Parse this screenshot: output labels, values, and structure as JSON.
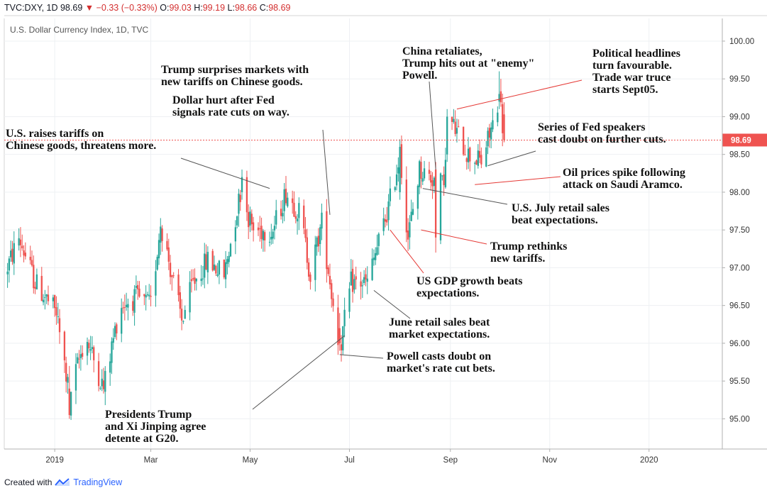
{
  "header": {
    "symbol": "TVC:DXY, 1D",
    "last": "98.69",
    "change": "−0.33 (−0.33%)",
    "o_label": "O:",
    "o_value": "99.03",
    "h_label": "H:",
    "h_value": "99.19",
    "l_label": "L:",
    "l_value": "98.66",
    "c_label": "C:",
    "c_value": "98.69",
    "down_arrow_icon": "triangle-down"
  },
  "footer": {
    "text": "Created with",
    "brand": "TradingView",
    "logo_icon": "tradingview-logo"
  },
  "colors": {
    "up": "#26a69a",
    "down": "#ef5350",
    "price_badge": "#ef5350",
    "annotation_line_gray": "#555555",
    "annotation_line_red": "#e53935"
  },
  "chart_data": {
    "type": "candlestick",
    "title": "U.S. Dollar Currency Index, 1D, TVC",
    "last_price_label": "98.69",
    "ylim": [
      94.6,
      100.3
    ],
    "y_ticks": [
      "100.00",
      "99.50",
      "99.00",
      "98.50",
      "98.00",
      "97.50",
      "97.00",
      "96.50",
      "96.00",
      "95.50",
      "95.00"
    ],
    "y_tick_values": [
      100.0,
      99.5,
      99.0,
      98.5,
      98.0,
      97.5,
      97.0,
      96.5,
      96.0,
      95.5,
      95.0
    ],
    "x_ticks": [
      "2019",
      "Mar",
      "May",
      "Jul",
      "Sep",
      "Nov",
      "2020"
    ],
    "x_tick_dates": [
      "2019-01-01",
      "2019-03-01",
      "2019-05-01",
      "2019-07-01",
      "2019-09-01",
      "2019-11-01",
      "2020-01-01"
    ],
    "x_range": [
      "2018-12-01",
      "2020-02-15"
    ],
    "grid": true,
    "price_path": [
      [
        "2018-12-01",
        96.9
      ],
      [
        "2018-12-10",
        97.4
      ],
      [
        "2018-12-20",
        96.8
      ],
      [
        "2019-01-02",
        96.4
      ],
      [
        "2019-01-10",
        95.3
      ],
      [
        "2019-01-20",
        96.1
      ],
      [
        "2019-01-31",
        95.4
      ],
      [
        "2019-02-10",
        96.5
      ],
      [
        "2019-02-20",
        96.6
      ],
      [
        "2019-03-01",
        96.5
      ],
      [
        "2019-03-07",
        97.6
      ],
      [
        "2019-03-20",
        96.3
      ],
      [
        "2019-03-27",
        96.8
      ],
      [
        "2019-04-05",
        97.1
      ],
      [
        "2019-04-15",
        96.9
      ],
      [
        "2019-04-25",
        98.0
      ],
      [
        "2019-05-03",
        97.5
      ],
      [
        "2019-05-15",
        97.5
      ],
      [
        "2019-05-23",
        98.0
      ],
      [
        "2019-06-01",
        97.7
      ],
      [
        "2019-06-07",
        96.9
      ],
      [
        "2019-06-14",
        97.6
      ],
      [
        "2019-06-25",
        95.9
      ],
      [
        "2019-07-02",
        96.8
      ],
      [
        "2019-07-12",
        96.8
      ],
      [
        "2019-07-25",
        97.8
      ],
      [
        "2019-08-01",
        98.5
      ],
      [
        "2019-08-06",
        97.4
      ],
      [
        "2019-08-13",
        98.3
      ],
      [
        "2019-08-20",
        98.2
      ],
      [
        "2019-08-27",
        98.1
      ],
      [
        "2019-09-02",
        98.9
      ],
      [
        "2019-09-12",
        98.5
      ],
      [
        "2019-09-20",
        98.4
      ],
      [
        "2019-09-27",
        98.9
      ],
      [
        "2019-10-01",
        99.3
      ],
      [
        "2019-10-04",
        98.69
      ]
    ],
    "notable_candles": [
      [
        "2019-01-10",
        95.4,
        95.7,
        95.0,
        95.05
      ],
      [
        "2019-04-26",
        98.0,
        98.3,
        97.9,
        98.2
      ],
      [
        "2019-06-25",
        96.2,
        96.4,
        95.9,
        96.0
      ],
      [
        "2019-08-01",
        98.0,
        98.7,
        97.9,
        98.6
      ],
      [
        "2019-08-23",
        98.3,
        98.4,
        97.2,
        97.4
      ],
      [
        "2019-08-30",
        98.5,
        99.1,
        98.4,
        99.0
      ],
      [
        "2019-10-01",
        99.2,
        99.6,
        99.1,
        99.3
      ],
      [
        "2019-10-04",
        99.03,
        99.19,
        98.66,
        98.69
      ]
    ],
    "annotations": [
      {
        "lines": [
          "U.S. raises tariffs on",
          "Chinese goods, threatens more."
        ],
        "anchor_date": "2019-05-13",
        "anchor_value": 98.05,
        "color": "gray"
      },
      {
        "lines": [
          "Trump surprises markets with",
          "new tariffs on Chinese goods."
        ],
        "anchor_date": null,
        "anchor_value": null,
        "color": "gray"
      },
      {
        "lines": [
          "Dollar hurt after Fed",
          "signals rate cuts on way."
        ],
        "anchor_date": "2019-06-19",
        "anchor_value": 97.7,
        "color": "gray"
      },
      {
        "lines": [
          "China retaliates,",
          "Trump hits out at \"enemy\"",
          "Powell."
        ],
        "anchor_date": "2019-08-23",
        "anchor_value": 98.3,
        "color": "gray"
      },
      {
        "lines": [
          "Political headlines",
          "turn favourable.",
          "Trade war truce",
          "starts Sept05."
        ],
        "anchor_date": "2019-09-05",
        "anchor_value": 99.1,
        "color": "red"
      },
      {
        "lines": [
          "Series of Fed speakers",
          "cast doubt on further cuts."
        ],
        "anchor_date": "2019-09-24",
        "anchor_value": 98.35,
        "color": "gray"
      },
      {
        "lines": [
          "Oil prices spike following",
          "attack on Saudi Aramco."
        ],
        "anchor_date": "2019-09-16",
        "anchor_value": 98.1,
        "color": "red"
      },
      {
        "lines": [
          "U.S. July retail sales",
          "beat expectations."
        ],
        "anchor_date": "2019-08-15",
        "anchor_value": 98.05,
        "color": "gray"
      },
      {
        "lines": [
          "Trump rethinks",
          "new tariffs."
        ],
        "anchor_date": "2019-08-14",
        "anchor_value": 97.5,
        "color": "red"
      },
      {
        "lines": [
          "US GDP growth beats",
          "expectations."
        ],
        "anchor_date": "2019-07-26",
        "anchor_value": 97.5,
        "color": "red"
      },
      {
        "lines": [
          "June retail sales beat",
          "market expectations."
        ],
        "anchor_date": "2019-07-16",
        "anchor_value": 96.7,
        "color": "gray"
      },
      {
        "lines": [
          "Powell casts doubt on",
          "market's rate cut bets."
        ],
        "anchor_date": "2019-06-25",
        "anchor_value": 95.85,
        "color": "gray"
      },
      {
        "lines": [
          "Presidents Trump",
          "and Xi Jinping agree",
          "detente at G20."
        ],
        "anchor_date": "2019-06-28",
        "anchor_value": 96.1,
        "color": "gray"
      }
    ]
  }
}
